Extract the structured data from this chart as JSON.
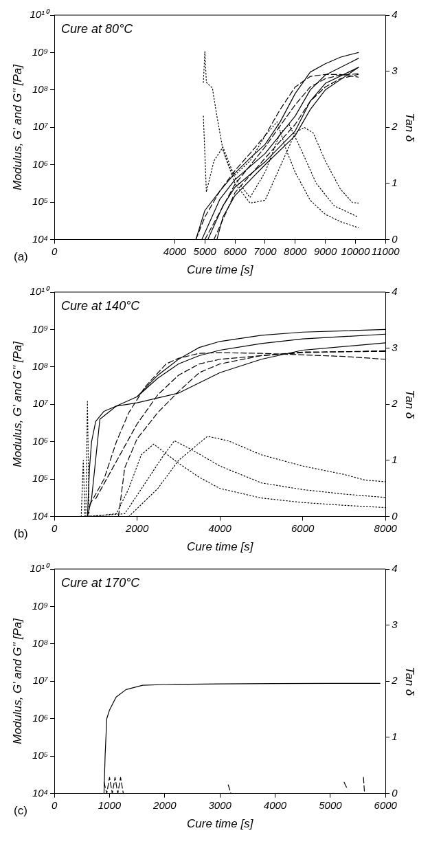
{
  "chart_data": [
    {
      "type": "line",
      "xlabel": "Cure time [s]",
      "ylabel": "Modulus, G' and G'' [Pa]",
      "y2label": "Tan δ",
      "annotations": [
        "Cure at 80°C",
        "(a)"
      ],
      "log": "y",
      "marker": "none",
      "xlim": [
        0,
        11000
      ],
      "xticks": [
        0,
        4000,
        5000,
        6000,
        7000,
        8000,
        9000,
        10000,
        11000
      ],
      "ylim": [
        10000,
        10000000000
      ],
      "yticks": [
        {
          "value": 10000,
          "label": "10⁴"
        },
        {
          "value": 100000,
          "label": "10⁵"
        },
        {
          "value": 1000000,
          "label": "10⁶"
        },
        {
          "value": 10000000,
          "label": "10⁷"
        },
        {
          "value": 100000000,
          "label": "10⁸"
        },
        {
          "value": 1000000000,
          "label": "10⁹"
        },
        {
          "value": 10000000000,
          "label": "10¹⁰"
        }
      ],
      "y2lim": [
        0,
        4
      ],
      "y2ticks": [
        0,
        1,
        2,
        3,
        4
      ],
      "series": [
        {
          "color": "#000000",
          "line_style": "solid",
          "x": [
            4700,
            5000,
            5500,
            6000,
            6500,
            7000,
            7500,
            8000,
            8500,
            9000,
            9500,
            10100
          ],
          "values": [
            10000,
            60000,
            200000,
            600000,
            1500000,
            3500000,
            14000000,
            80000000,
            300000000,
            500000000,
            750000000,
            1000000000
          ]
        },
        {
          "color": "#000000",
          "line_style": "solid",
          "x": [
            4900,
            5500,
            6000,
            7000,
            8000,
            8500,
            9000,
            10100
          ],
          "values": [
            10000,
            120000,
            400000,
            2000000,
            20000000,
            100000000,
            250000000,
            700000000
          ]
        },
        {
          "color": "#000000",
          "line_style": "solid",
          "x": [
            5100,
            5600,
            6000,
            7000,
            8000,
            8500,
            9000,
            10100
          ],
          "values": [
            10000,
            80000,
            250000,
            1200000,
            8000000,
            50000000,
            150000000,
            400000000
          ]
        },
        {
          "color": "#000000",
          "line_style": "solid",
          "x": [
            5400,
            5600,
            6000,
            7000,
            8000,
            8500,
            9000,
            10100
          ],
          "values": [
            10000,
            40000,
            150000,
            1000000,
            6000000,
            30000000,
            100000000,
            400000000
          ]
        },
        {
          "color": "#000000",
          "line_style": "dashed",
          "x": [
            4700,
            5000,
            5500,
            6000,
            6500,
            7000,
            7500,
            8000,
            8500,
            9000,
            9500,
            10100
          ],
          "values": [
            10000,
            40000,
            200000,
            700000,
            2000000,
            6000000,
            30000000,
            120000000,
            230000000,
            260000000,
            260000000,
            220000000
          ]
        },
        {
          "color": "#000000",
          "line_style": "dashed",
          "x": [
            5000,
            6000,
            7000,
            8000,
            8500,
            9000,
            9500,
            10100
          ],
          "values": [
            10000,
            300000,
            3000000,
            40000000,
            120000000,
            200000000,
            250000000,
            270000000
          ]
        },
        {
          "color": "#000000",
          "line_style": "dashed",
          "x": [
            5300,
            6000,
            7000,
            8000,
            8500,
            9000,
            9500,
            10100
          ],
          "values": [
            10000,
            180000,
            1500000,
            12000000,
            50000000,
            120000000,
            200000000,
            260000000
          ]
        },
        {
          "color": "#000000",
          "line_style": "dotted",
          "axis": "y2",
          "x": [
            4950,
            5000,
            5050,
            5250,
            5400,
            5600,
            5800,
            6000,
            6500,
            7000,
            7400,
            7700,
            8000,
            8500,
            9000,
            9500,
            10100
          ],
          "values": [
            2.8,
            3.35,
            2.8,
            2.7,
            2.2,
            1.6,
            1.3,
            1.15,
            1.4,
            1.85,
            2.1,
            1.6,
            1.2,
            0.7,
            0.45,
            0.32,
            0.21
          ]
        },
        {
          "color": "#000000",
          "line_style": "dotted",
          "axis": "y2",
          "x": [
            4950,
            5050,
            5300,
            5600,
            6000,
            6500,
            7000,
            7500,
            7800,
            8200,
            8700,
            9300,
            10100
          ],
          "values": [
            2.2,
            0.85,
            1.4,
            1.65,
            1.1,
            0.75,
            1.2,
            1.9,
            2.05,
            1.6,
            1.0,
            0.6,
            0.4
          ]
        },
        {
          "color": "#000000",
          "line_style": "dotted",
          "axis": "y2",
          "x": [
            5600,
            6000,
            6500,
            7000,
            7500,
            8000,
            8300,
            8600,
            9000,
            9500,
            9900,
            10100
          ],
          "values": [
            1.6,
            1.0,
            0.65,
            0.7,
            1.3,
            1.9,
            2.0,
            1.9,
            1.4,
            0.9,
            0.66,
            0.65
          ]
        }
      ]
    },
    {
      "type": "line",
      "xlabel": "Cure time [s]",
      "ylabel": "Modulus, G' and G'' [Pa]",
      "y2label": "Tan δ",
      "annotations": [
        "Cure at 140°C",
        "(b)"
      ],
      "log": "y",
      "marker": "none",
      "xlim": [
        0,
        8000
      ],
      "xticks": [
        0,
        2000,
        4000,
        6000,
        8000
      ],
      "ylim": [
        10000,
        10000000000
      ],
      "yticks": [
        {
          "value": 10000,
          "label": "10⁴"
        },
        {
          "value": 100000,
          "label": "10⁵"
        },
        {
          "value": 1000000,
          "label": "10⁶"
        },
        {
          "value": 10000000,
          "label": "10⁷"
        },
        {
          "value": 100000000,
          "label": "10⁸"
        },
        {
          "value": 1000000000,
          "label": "10⁹"
        },
        {
          "value": 10000000000,
          "label": "10¹⁰"
        }
      ],
      "y2lim": [
        0,
        4
      ],
      "y2ticks": [
        0,
        1,
        2,
        3,
        4
      ],
      "series": [
        {
          "color": "#000000",
          "line_style": "solid",
          "x": [
            800,
            850,
            900,
            1000,
            1200,
            1500,
            2000,
            2500,
            3000,
            3500,
            4000,
            5000,
            6000,
            8000
          ],
          "values": [
            10000,
            200000,
            1000000,
            3500000,
            6500000,
            9000000,
            16000000,
            60000000,
            160000000,
            330000000,
            480000000,
            700000000,
            850000000,
            1000000000
          ]
        },
        {
          "color": "#000000",
          "line_style": "solid",
          "x": [
            800,
            900,
            1100,
            1500,
            2000,
            3000,
            4000,
            5000,
            6000,
            8000
          ],
          "values": [
            10000,
            30000,
            4000000,
            9000000,
            11000000,
            20000000,
            70000000,
            160000000,
            280000000,
            440000000
          ]
        },
        {
          "color": "#000000",
          "line_style": "solid",
          "x": [
            2000,
            2500,
            3000,
            3500,
            4000,
            5000,
            6000,
            8000
          ],
          "values": [
            16000000,
            50000000,
            120000000,
            200000000,
            280000000,
            420000000,
            560000000,
            750000000
          ]
        },
        {
          "color": "#000000",
          "line_style": "dashed",
          "x": [
            850,
            1200,
            1500,
            1800,
            2200,
            2700,
            3000,
            3500,
            4000,
            5000,
            6000,
            7000,
            8000
          ],
          "values": [
            20000,
            100000,
            1000000,
            6000000,
            30000000,
            120000000,
            170000000,
            230000000,
            240000000,
            230000000,
            210000000,
            190000000,
            160000000
          ]
        },
        {
          "color": "#000000",
          "line_style": "dashed",
          "x": [
            1000,
            1500,
            2000,
            2500,
            3000,
            3500,
            4000,
            5000,
            6000,
            8000
          ],
          "values": [
            30000,
            300000,
            3000000,
            18000000,
            60000000,
            120000000,
            160000000,
            200000000,
            240000000,
            270000000
          ]
        },
        {
          "color": "#000000",
          "line_style": "dashed",
          "x": [
            1550,
            1700,
            2000,
            2500,
            3000,
            3500,
            4000,
            5000,
            6000,
            8000
          ],
          "values": [
            10000,
            200000,
            1200000,
            6000000,
            22000000,
            70000000,
            120000000,
            200000000,
            250000000,
            260000000
          ]
        },
        {
          "color": "#000000",
          "line_style": "dotted",
          "axis": "y2",
          "x": [
            760,
            800,
            840,
            1500,
            1800,
            2100,
            2400,
            3000,
            3500,
            4000,
            5000,
            6000,
            7000,
            8000
          ],
          "values": [
            0,
            2.05,
            0,
            0.05,
            0.5,
            1.1,
            1.29,
            0.95,
            0.7,
            0.5,
            0.33,
            0.25,
            0.2,
            0.16
          ]
        },
        {
          "color": "#000000",
          "line_style": "dotted",
          "axis": "y2",
          "x": [
            650,
            700,
            740,
            1700,
            2200,
            2600,
            2900,
            3300,
            4000,
            5000,
            6000,
            7000,
            8000
          ],
          "values": [
            0,
            1.0,
            0,
            0.05,
            0.6,
            1.05,
            1.35,
            1.2,
            0.9,
            0.6,
            0.48,
            0.4,
            0.34
          ]
        },
        {
          "color": "#000000",
          "line_style": "dotted",
          "axis": "y2",
          "x": [
            1800,
            2500,
            3000,
            3700,
            4200,
            5000,
            6000,
            7000,
            7500,
            8000
          ],
          "values": [
            0,
            0.5,
            1.0,
            1.43,
            1.35,
            1.1,
            0.9,
            0.75,
            0.65,
            0.62
          ]
        }
      ]
    },
    {
      "type": "line",
      "xlabel": "Cure time [s]",
      "ylabel": "Modulus, G' and G'' [Pa]",
      "y2label": "Tan δ",
      "annotations": [
        "Cure at 170°C",
        "(c)"
      ],
      "log": "y",
      "marker": "none",
      "xlim": [
        0,
        6000
      ],
      "xticks": [
        0,
        1000,
        2000,
        3000,
        4000,
        5000,
        6000
      ],
      "ylim": [
        10000,
        10000000000
      ],
      "yticks": [
        {
          "value": 10000,
          "label": "10⁴"
        },
        {
          "value": 100000,
          "label": "10⁵"
        },
        {
          "value": 1000000,
          "label": "10⁶"
        },
        {
          "value": 10000000,
          "label": "10⁷"
        },
        {
          "value": 100000000,
          "label": "10⁸"
        },
        {
          "value": 1000000000,
          "label": "10⁹"
        },
        {
          "value": 10000000000,
          "label": "10¹⁰"
        }
      ],
      "y2lim": [
        0,
        4
      ],
      "y2ticks": [
        0,
        1,
        2,
        3,
        4
      ],
      "series": [
        {
          "color": "#000000",
          "line_style": "solid",
          "x": [
            900,
            920,
            950,
            1000,
            1120,
            1300,
            1600,
            2000,
            3000,
            4000,
            5000,
            5900
          ],
          "values": [
            10000,
            100000,
            1000000,
            1700000,
            3800000,
            6000000,
            7800000,
            8200000,
            8500000,
            8700000,
            8800000,
            8800000
          ]
        },
        {
          "color": "#000000",
          "line_style": "dashed",
          "x": [
            900,
            950,
            1000,
            1050,
            1100,
            1150,
            1200,
            1250,
            1300,
            3150,
            3200,
            3300,
            5250,
            5300,
            5350,
            5600,
            5620
          ],
          "values": [
            20000,
            10000,
            27000,
            10000,
            27000,
            10000,
            27000,
            10000,
            null,
            17000,
            10000,
            null,
            20000,
            14000,
            null,
            27000,
            10000
          ]
        }
      ]
    }
  ]
}
